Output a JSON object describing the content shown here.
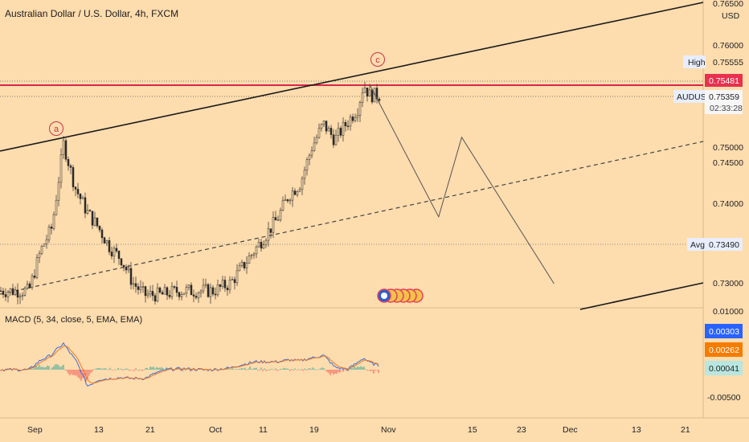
{
  "header": {
    "title": "Australian Dollar / U.S. Dollar, 4h, FXCM",
    "currency": "USD"
  },
  "colors": {
    "background": "#fddcae",
    "candle": "#2b2b2b",
    "resistance": "#d6284a",
    "macd_line": "#3a6fe0",
    "signal_line": "#f07a20",
    "hist_pos": "#26a69a",
    "hist_neg": "#ef5350"
  },
  "price_axis": {
    "ticks": [
      "0.76500",
      "0.76000",
      "0.75000",
      "0.74500",
      "0.74000",
      "0.73000",
      "0.01000"
    ]
  },
  "tags": {
    "high": {
      "label": "High",
      "value": "0.75555"
    },
    "resistance": {
      "value": "0.75481"
    },
    "symbol": {
      "label": "AUDUSD",
      "value": "0.75359",
      "countdown": "02:33:28"
    },
    "avg": {
      "label": "Avg",
      "value": "0.73490"
    }
  },
  "waves": {
    "a": "a",
    "c": "c"
  },
  "macd": {
    "title": "MACD (5, 34, close, 5, EMA, EMA)",
    "macd_value": "0.00303",
    "signal_value": "0.00262",
    "hist_value": "0.00041",
    "axis_tick": "-0.00500"
  },
  "time_axis": {
    "labels": [
      "Sep",
      "13",
      "21",
      "Oct",
      "11",
      "19",
      "Nov",
      "15",
      "23",
      "Dec",
      "13",
      "21"
    ]
  },
  "chart_data": {
    "type": "candlestick",
    "title": "Australian Dollar / U.S. Dollar, 4h, FXCM",
    "ylim": [
      0.73,
      0.766
    ],
    "grid": false,
    "legend": "none",
    "horizontal_levels": {
      "high": 0.75555,
      "resistance": 0.75481,
      "last": 0.75359,
      "avg": 0.7349
    },
    "price_path": [
      {
        "x": "Sep 1",
        "y": 0.729
      },
      {
        "x": "Sep 3",
        "y": 0.734
      },
      {
        "x": "Sep 5",
        "y": 0.737
      },
      {
        "x": "Sep 7",
        "y": 0.7475
      },
      {
        "x": "Sep 9",
        "y": 0.742
      },
      {
        "x": "Sep 11",
        "y": 0.739
      },
      {
        "x": "Sep 13",
        "y": 0.737
      },
      {
        "x": "Sep 15",
        "y": 0.7345
      },
      {
        "x": "Sep 17",
        "y": 0.733
      },
      {
        "x": "Sep 19",
        "y": 0.73
      },
      {
        "x": "Sep 21",
        "y": 0.7285
      },
      {
        "x": "Sep 24",
        "y": 0.7285
      },
      {
        "x": "Sep 27",
        "y": 0.729
      },
      {
        "x": "Sep 30",
        "y": 0.729
      },
      {
        "x": "Oct 3",
        "y": 0.729
      },
      {
        "x": "Oct 6",
        "y": 0.73
      },
      {
        "x": "Oct 9",
        "y": 0.733
      },
      {
        "x": "Oct 12",
        "y": 0.736
      },
      {
        "x": "Oct 14",
        "y": 0.738
      },
      {
        "x": "Oct 16",
        "y": 0.741
      },
      {
        "x": "Oct 18",
        "y": 0.7425
      },
      {
        "x": "Oct 20",
        "y": 0.747
      },
      {
        "x": "Oct 22",
        "y": 0.75
      },
      {
        "x": "Oct 24",
        "y": 0.748
      },
      {
        "x": "Oct 26",
        "y": 0.75
      },
      {
        "x": "Oct 28",
        "y": 0.752
      },
      {
        "x": "Oct 29",
        "y": 0.755
      },
      {
        "x": "Oct 30",
        "y": 0.7536
      }
    ],
    "projection_path": [
      {
        "x": "Oct 30",
        "y": 0.755
      },
      {
        "x": "Nov 11",
        "y": 0.7383
      },
      {
        "x": "Nov 15",
        "y": 0.7483
      },
      {
        "x": "Dec 1",
        "y": 0.7299
      }
    ],
    "wave_labels": [
      {
        "text": "a",
        "x": "Sep 7",
        "y": 0.7485
      },
      {
        "text": "c",
        "x": "Oct 29",
        "y": 0.757
      }
    ],
    "macd": {
      "name": "MACD (5, 34, close, 5, EMA, EMA)",
      "last": {
        "macd": 0.00303,
        "signal": 0.00262,
        "histogram": 0.00041
      }
    }
  }
}
